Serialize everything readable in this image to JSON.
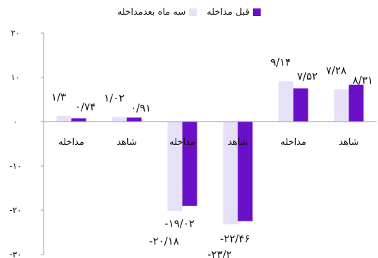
{
  "chart_data": {
    "type": "bar",
    "title": "",
    "xlabel": "",
    "ylabel": "",
    "ylim": [
      -30,
      20
    ],
    "yticks": [
      20,
      10,
      0,
      -10,
      -20,
      -30
    ],
    "ytick_labels": [
      "۲۰",
      "۱۰",
      "۰",
      "-۱۰",
      "-۲۰",
      "-۳۰"
    ],
    "grid": false,
    "legend_position": "top-center",
    "categories": [
      "مداخله",
      "شاهد",
      "مداخله",
      "شاهد",
      "مداخله",
      "شاهد"
    ],
    "series": [
      {
        "name": "قبل مداخله",
        "color": "#6a10c8",
        "values": [
          0.74,
          0.91,
          -19.02,
          -22.46,
          7.52,
          8.31
        ],
        "labels": [
          "۰/۷۴",
          "۰/۹۱",
          "-۱۹/۰۲",
          "-۲۲/۴۶",
          "۷/۵۲",
          "۸/۳۱"
        ]
      },
      {
        "name": "سه ماه بعدمداخله",
        "color": "#e6e0f8",
        "values": [
          1.3,
          1.02,
          -20.18,
          -23.2,
          9.14,
          7.28
        ],
        "labels": [
          "۱/۳",
          "۱/۰۲",
          "-۲۰/۱۸",
          "-۲۳/۲",
          "۹/۱۴",
          "۷/۲۸"
        ]
      }
    ]
  }
}
